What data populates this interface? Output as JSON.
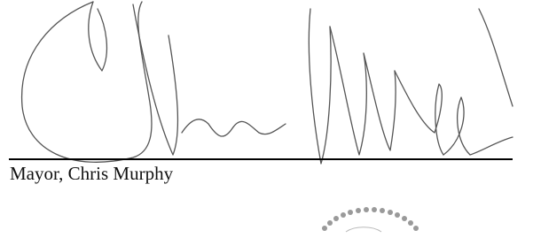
{
  "signature_block": {
    "name_line": "Mayor, Chris Murphy"
  }
}
